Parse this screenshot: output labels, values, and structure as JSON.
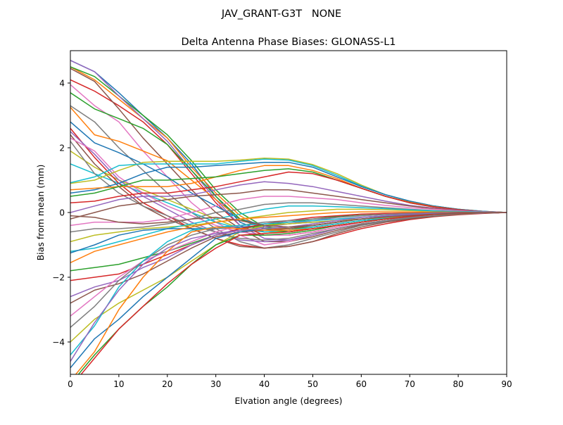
{
  "chart_data": {
    "type": "line",
    "suptitle": "JAV_GRANT-G3T   NONE",
    "title": "Delta Antenna Phase Biases: GLONASS-L1",
    "xlabel": "Elvation angle (degrees)",
    "ylabel": "Bias from mean (mm)",
    "xlim": [
      0,
      90
    ],
    "ylim": [
      -5,
      5
    ],
    "xticks": [
      0,
      10,
      20,
      30,
      40,
      50,
      60,
      70,
      80,
      90
    ],
    "yticks": [
      -4,
      -2,
      0,
      2,
      4
    ],
    "ytick_labels": [
      "−4",
      "−2",
      "0",
      "2",
      "4"
    ],
    "grid": false,
    "colors": [
      "#1f77b4",
      "#ff7f0e",
      "#2ca02c",
      "#d62728",
      "#9467bd",
      "#8c564b",
      "#e377c2",
      "#7f7f7f",
      "#bcbd22",
      "#17becf"
    ],
    "x": [
      0,
      5,
      10,
      15,
      20,
      25,
      30,
      35,
      40,
      45,
      50,
      55,
      60,
      65,
      70,
      75,
      80,
      85,
      90
    ],
    "series": [
      [
        4.7,
        4.35,
        3.7,
        3.0,
        2.3,
        1.5,
        0.5,
        -0.3,
        -0.6,
        -0.55,
        -0.45,
        -0.35,
        -0.25,
        -0.18,
        -0.12,
        -0.08,
        -0.05,
        -0.02,
        0
      ],
      [
        4.5,
        4.1,
        3.5,
        2.9,
        2.3,
        1.4,
        0.6,
        -0.1,
        -0.5,
        -0.6,
        -0.5,
        -0.4,
        -0.3,
        -0.2,
        -0.13,
        -0.08,
        -0.04,
        -0.02,
        0
      ],
      [
        4.5,
        4.2,
        3.6,
        3.0,
        2.4,
        1.6,
        0.7,
        0,
        -0.45,
        -0.5,
        -0.45,
        -0.35,
        -0.25,
        -0.18,
        -0.12,
        -0.07,
        -0.04,
        -0.02,
        0
      ],
      [
        4.1,
        3.75,
        3.3,
        2.8,
        2.1,
        1.2,
        0.3,
        -0.4,
        -0.7,
        -0.7,
        -0.6,
        -0.45,
        -0.3,
        -0.2,
        -0.14,
        -0.09,
        -0.05,
        -0.02,
        0
      ],
      [
        4.7,
        4.35,
        3.6,
        2.9,
        2.2,
        1.3,
        0.4,
        -0.4,
        -0.8,
        -0.85,
        -0.7,
        -0.5,
        -0.35,
        -0.25,
        -0.15,
        -0.1,
        -0.05,
        -0.02,
        0
      ],
      [
        4.45,
        4.05,
        3.2,
        2.3,
        1.5,
        0.7,
        0,
        -0.5,
        -0.9,
        -0.9,
        -0.75,
        -0.55,
        -0.38,
        -0.26,
        -0.16,
        -0.1,
        -0.05,
        -0.02,
        0
      ],
      [
        3.95,
        3.3,
        2.8,
        1.9,
        1.1,
        0.3,
        -0.3,
        -0.7,
        -1.0,
        -0.9,
        -0.7,
        -0.5,
        -0.35,
        -0.25,
        -0.15,
        -0.1,
        -0.05,
        -0.02,
        0
      ],
      [
        3.3,
        2.8,
        2.0,
        1.3,
        0.6,
        0,
        -0.5,
        -0.9,
        -1.1,
        -1.0,
        -0.8,
        -0.6,
        -0.4,
        -0.28,
        -0.18,
        -0.1,
        -0.05,
        -0.02,
        0
      ],
      [
        1.9,
        1.4,
        1.0,
        0.7,
        0.4,
        0.1,
        -0.2,
        -0.5,
        -0.6,
        -0.6,
        -0.5,
        -0.4,
        -0.3,
        -0.2,
        -0.13,
        -0.08,
        -0.04,
        -0.02,
        0
      ],
      [
        1.5,
        1.2,
        0.9,
        0.6,
        0.3,
        0,
        -0.3,
        -0.5,
        -0.6,
        -0.55,
        -0.45,
        -0.35,
        -0.25,
        -0.18,
        -0.12,
        -0.07,
        -0.04,
        -0.02,
        0
      ],
      [
        2.8,
        2.15,
        1.85,
        1.5,
        1.1,
        0.6,
        0.2,
        -0.2,
        -0.4,
        -0.45,
        -0.4,
        -0.3,
        -0.2,
        -0.15,
        -0.1,
        -0.06,
        -0.03,
        -0.01,
        0
      ],
      [
        3.25,
        2.4,
        2.2,
        1.9,
        1.6,
        1.0,
        0.4,
        -0.2,
        -0.5,
        -0.5,
        -0.4,
        -0.3,
        -0.2,
        -0.15,
        -0.1,
        -0.06,
        -0.03,
        -0.01,
        0
      ],
      [
        3.7,
        3.2,
        2.9,
        2.6,
        2.1,
        1.3,
        0.5,
        -0.2,
        -0.5,
        -0.6,
        -0.5,
        -0.4,
        -0.3,
        -0.2,
        -0.13,
        -0.08,
        -0.04,
        -0.02,
        0
      ],
      [
        2.6,
        1.7,
        0.9,
        0.3,
        -0.1,
        -0.5,
        -0.8,
        -1.0,
        -1.1,
        -1.05,
        -0.9,
        -0.7,
        -0.5,
        -0.35,
        -0.22,
        -0.13,
        -0.07,
        -0.03,
        0
      ],
      [
        2.5,
        1.8,
        1.0,
        0.5,
        0.1,
        -0.3,
        -0.6,
        -0.85,
        -0.9,
        -0.85,
        -0.7,
        -0.5,
        -0.35,
        -0.25,
        -0.15,
        -0.1,
        -0.05,
        -0.02,
        0
      ],
      [
        2.4,
        1.5,
        0.8,
        0.2,
        -0.2,
        -0.5,
        -0.8,
        -1.05,
        -1.1,
        -1.05,
        -0.9,
        -0.65,
        -0.45,
        -0.3,
        -0.2,
        -0.12,
        -0.06,
        -0.02,
        0
      ],
      [
        2.3,
        1.9,
        1.1,
        0.6,
        0.2,
        -0.1,
        -0.4,
        -0.6,
        -0.7,
        -0.7,
        -0.6,
        -0.45,
        -0.3,
        -0.2,
        -0.13,
        -0.08,
        -0.04,
        -0.02,
        0
      ],
      [
        2.2,
        1.2,
        0.6,
        0.2,
        -0.1,
        -0.4,
        -0.6,
        -0.8,
        -0.85,
        -0.8,
        -0.65,
        -0.5,
        -0.35,
        -0.25,
        -0.15,
        -0.1,
        -0.05,
        -0.02,
        0
      ],
      [
        0.9,
        1.0,
        1.3,
        1.55,
        1.58,
        1.58,
        1.58,
        1.62,
        1.68,
        1.65,
        1.48,
        1.2,
        0.85,
        0.55,
        0.35,
        0.2,
        0.1,
        0.04,
        0
      ],
      [
        0.92,
        1.1,
        1.45,
        1.5,
        1.5,
        1.5,
        1.5,
        1.58,
        1.65,
        1.62,
        1.45,
        1.15,
        0.82,
        0.55,
        0.35,
        0.2,
        0.1,
        0.04,
        0
      ],
      [
        0.6,
        0.7,
        0.9,
        1.2,
        1.4,
        1.4,
        1.45,
        1.5,
        1.55,
        1.55,
        1.4,
        1.1,
        0.8,
        0.55,
        0.35,
        0.2,
        0.1,
        0.04,
        0
      ],
      [
        0.7,
        0.75,
        0.8,
        0.8,
        0.8,
        0.9,
        1.1,
        1.3,
        1.45,
        1.45,
        1.3,
        1.05,
        0.75,
        0.5,
        0.32,
        0.18,
        0.09,
        0.03,
        0
      ],
      [
        0.5,
        0.6,
        0.8,
        1.0,
        1.0,
        1.05,
        1.1,
        1.2,
        1.3,
        1.35,
        1.25,
        1.0,
        0.75,
        0.5,
        0.3,
        0.17,
        0.09,
        0.03,
        0
      ],
      [
        0.3,
        0.35,
        0.5,
        0.6,
        0.6,
        0.7,
        0.8,
        0.95,
        1.1,
        1.25,
        1.2,
        1.0,
        0.75,
        0.5,
        0.3,
        0.17,
        0.09,
        0.03,
        0
      ],
      [
        0,
        0.2,
        0.4,
        0.5,
        0.5,
        0.55,
        0.7,
        0.85,
        0.95,
        0.9,
        0.8,
        0.65,
        0.5,
        0.35,
        0.22,
        0.13,
        0.07,
        0.03,
        0
      ],
      [
        -0.2,
        0,
        0.2,
        0.3,
        0.4,
        0.5,
        0.55,
        0.6,
        0.7,
        0.7,
        0.6,
        0.5,
        0.4,
        0.3,
        0.2,
        0.12,
        0.06,
        0.02,
        0
      ],
      [
        -0.4,
        -0.3,
        -0.3,
        -0.3,
        -0.2,
        0,
        0.2,
        0.4,
        0.5,
        0.5,
        0.45,
        0.4,
        0.3,
        0.22,
        0.15,
        0.1,
        0.05,
        0.02,
        0
      ],
      [
        -0.6,
        -0.5,
        -0.5,
        -0.45,
        -0.35,
        -0.2,
        0,
        0.1,
        0.25,
        0.3,
        0.3,
        0.25,
        0.2,
        0.15,
        0.1,
        0.06,
        0.03,
        0.01,
        0
      ],
      [
        -0.9,
        -0.7,
        -0.6,
        -0.5,
        -0.45,
        -0.4,
        -0.3,
        -0.2,
        -0.1,
        0,
        0.05,
        0.1,
        0.1,
        0.08,
        0.06,
        0.04,
        0.02,
        0.01,
        0
      ],
      [
        -1.2,
        -1.1,
        -0.9,
        -0.7,
        -0.5,
        -0.35,
        -0.2,
        -0.05,
        0.1,
        0.2,
        0.2,
        0.18,
        0.15,
        0.12,
        0.08,
        0.05,
        0.03,
        0.01,
        0
      ],
      [
        -1.25,
        -1.0,
        -0.7,
        -0.55,
        -0.5,
        -0.5,
        -0.5,
        -0.45,
        -0.4,
        -0.35,
        -0.3,
        -0.25,
        -0.2,
        -0.15,
        -0.1,
        -0.06,
        -0.03,
        -0.01,
        0
      ],
      [
        -1.55,
        -1.2,
        -1.0,
        -0.8,
        -0.6,
        -0.45,
        -0.3,
        -0.2,
        -0.15,
        -0.1,
        -0.05,
        0,
        0.02,
        0.02,
        0.02,
        0.01,
        0.01,
        0,
        0
      ],
      [
        -1.8,
        -1.7,
        -1.6,
        -1.4,
        -1.2,
        -0.95,
        -0.7,
        -0.5,
        -0.4,
        -0.3,
        -0.2,
        -0.12,
        -0.06,
        -0.03,
        -0.02,
        -0.01,
        0,
        0,
        0
      ],
      [
        -2.1,
        -2.0,
        -1.9,
        -1.6,
        -1.3,
        -1.0,
        -0.7,
        -0.5,
        -0.35,
        -0.25,
        -0.15,
        -0.1,
        -0.05,
        -0.03,
        -0.02,
        -0.01,
        0,
        0,
        0
      ],
      [
        -2.6,
        -2.3,
        -2.1,
        -1.7,
        -1.4,
        -1.0,
        -0.7,
        -0.55,
        -0.45,
        -0.35,
        -0.25,
        -0.15,
        -0.1,
        -0.06,
        -0.03,
        -0.02,
        -0.01,
        0,
        0
      ],
      [
        -2.8,
        -2.4,
        -2.2,
        -1.9,
        -1.5,
        -1.1,
        -0.75,
        -0.6,
        -0.55,
        -0.5,
        -0.4,
        -0.3,
        -0.2,
        -0.13,
        -0.08,
        -0.04,
        -0.02,
        -0.01,
        0
      ],
      [
        -3.2,
        -2.6,
        -2.0,
        -1.5,
        -1.2,
        -0.9,
        -0.6,
        -0.4,
        -0.35,
        -0.3,
        -0.25,
        -0.2,
        -0.15,
        -0.1,
        -0.06,
        -0.03,
        -0.02,
        -0.01,
        0
      ],
      [
        -3.55,
        -2.9,
        -2.1,
        -1.5,
        -1.0,
        -0.7,
        -0.5,
        -0.4,
        -0.3,
        -0.25,
        -0.2,
        -0.15,
        -0.1,
        -0.06,
        -0.04,
        -0.02,
        -0.01,
        0,
        0
      ],
      [
        -4.0,
        -3.3,
        -2.8,
        -2.4,
        -2.0,
        -1.5,
        -1.0,
        -0.6,
        -0.4,
        -0.35,
        -0.3,
        -0.25,
        -0.2,
        -0.15,
        -0.1,
        -0.06,
        -0.03,
        -0.01,
        0
      ],
      [
        -4.4,
        -3.5,
        -2.3,
        -1.5,
        -0.9,
        -0.55,
        -0.45,
        -0.4,
        -0.35,
        -0.3,
        -0.25,
        -0.2,
        -0.15,
        -0.1,
        -0.06,
        -0.03,
        -0.02,
        -0.01,
        0
      ],
      [
        -4.8,
        -3.9,
        -3.3,
        -2.6,
        -2.0,
        -1.4,
        -0.8,
        -0.6,
        -0.5,
        -0.45,
        -0.4,
        -0.3,
        -0.2,
        -0.13,
        -0.08,
        -0.04,
        -0.02,
        -0.01,
        0
      ],
      [
        -5.2,
        -4.3,
        -3.0,
        -2.0,
        -1.2,
        -0.6,
        -0.45,
        -0.5,
        -0.55,
        -0.55,
        -0.5,
        -0.4,
        -0.3,
        -0.2,
        -0.12,
        -0.06,
        -0.03,
        -0.01,
        0
      ],
      [
        -5.3,
        -4.4,
        -3.6,
        -2.9,
        -2.3,
        -1.6,
        -1.0,
        -0.7,
        -0.7,
        -0.65,
        -0.55,
        -0.4,
        -0.3,
        -0.2,
        -0.12,
        -0.06,
        -0.03,
        -0.01,
        0
      ],
      [
        -5.4,
        -4.5,
        -3.6,
        -2.9,
        -2.2,
        -1.6,
        -1.1,
        -0.7,
        -0.65,
        -0.6,
        -0.5,
        -0.4,
        -0.3,
        -0.2,
        -0.12,
        -0.06,
        -0.03,
        -0.01,
        0
      ],
      [
        -4.6,
        -3.4,
        -2.4,
        -1.6,
        -1.1,
        -0.8,
        -0.65,
        -0.55,
        -0.5,
        -0.45,
        -0.35,
        -0.25,
        -0.15,
        -0.1,
        -0.06,
        -0.03,
        -0.02,
        -0.01,
        0
      ],
      [
        -0.1,
        -0.15,
        -0.3,
        -0.35,
        -0.3,
        -0.2,
        -0.15,
        -0.25,
        -0.4,
        -0.45,
        -0.4,
        -0.3,
        -0.2,
        -0.14,
        -0.09,
        -0.05,
        -0.02,
        -0.01,
        0
      ]
    ]
  }
}
